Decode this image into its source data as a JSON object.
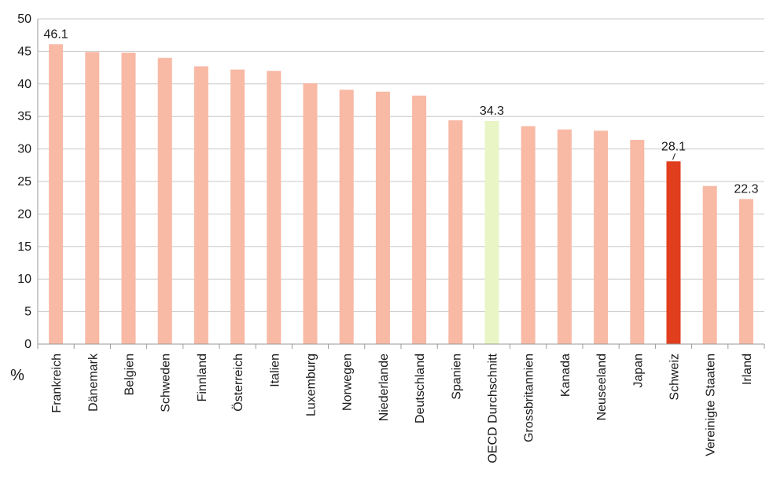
{
  "chart_data": {
    "type": "bar",
    "title": "",
    "xlabel": "",
    "ylabel": "",
    "unit_label": "%",
    "ylim": [
      0,
      50
    ],
    "yticks": [
      0,
      5,
      10,
      15,
      20,
      25,
      30,
      35,
      40,
      45,
      50
    ],
    "grid": true,
    "legend": "none",
    "categories": [
      "Frankreich",
      "Dänemark",
      "Belgien",
      "Schweden",
      "Finnland",
      "Österreich",
      "Italien",
      "Luxemburg",
      "Norwegen",
      "Niederlande",
      "Deutschland",
      "Spanien",
      "OECD Durchschnitt",
      "Grossbritannien",
      "Kanada",
      "Neuseeland",
      "Japan",
      "Schweiz",
      "Vereinigte Staaten",
      "Irland"
    ],
    "values": [
      46.1,
      44.9,
      44.8,
      44.0,
      42.7,
      42.2,
      42.0,
      40.1,
      39.1,
      38.8,
      38.2,
      34.4,
      34.3,
      33.5,
      33.0,
      32.8,
      31.4,
      28.1,
      24.3,
      22.3
    ],
    "data_labels": [
      {
        "index": 0,
        "text": "46.1"
      },
      {
        "index": 12,
        "text": "34.3"
      },
      {
        "index": 17,
        "text": "28.1"
      },
      {
        "index": 19,
        "text": "22.3"
      }
    ],
    "colors": {
      "default": "#f8b9a5",
      "oecd": "#eaf5c5",
      "highlight": "#e03e1d",
      "highlight_index": 17,
      "oecd_index": 12
    }
  }
}
